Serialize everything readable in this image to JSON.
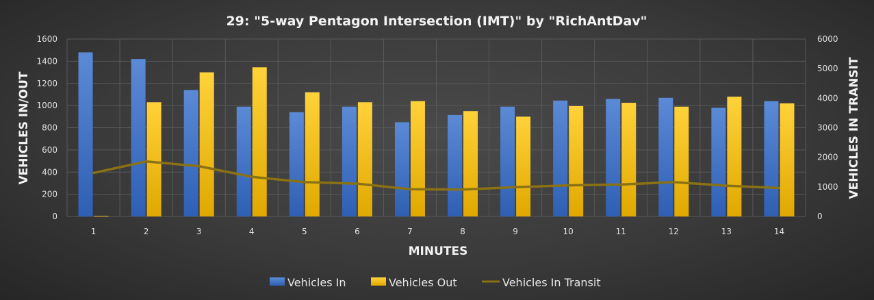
{
  "chart_data": {
    "type": "bar",
    "title": "29: \"5-way Pentagon Intersection (IMT)\" by \"RichAntDav\"",
    "xlabel": "MINUTES",
    "ylabel": "VEHICLES IN/OUT",
    "y2label": "VEHICLES IN TRANSIT",
    "ylim": [
      0,
      1600
    ],
    "y2lim": [
      0,
      6000
    ],
    "yticks": [
      0,
      200,
      400,
      600,
      800,
      1000,
      1200,
      1400,
      1600
    ],
    "y2ticks": [
      0,
      1000,
      2000,
      3000,
      4000,
      5000,
      6000
    ],
    "grid": true,
    "legend_position": "bottom",
    "categories": [
      "1",
      "2",
      "3",
      "4",
      "5",
      "6",
      "7",
      "8",
      "9",
      "10",
      "11",
      "12",
      "13",
      "14"
    ],
    "series": [
      {
        "name": "Vehicles In",
        "kind": "bar",
        "axis": "left",
        "color": "#4472c4",
        "values": [
          1480,
          1420,
          1140,
          990,
          940,
          990,
          850,
          915,
          990,
          1045,
          1060,
          1070,
          980,
          1040
        ]
      },
      {
        "name": "Vehicles Out",
        "kind": "bar",
        "axis": "left",
        "color": "#ffc000",
        "values": [
          5,
          1030,
          1300,
          1345,
          1120,
          1030,
          1040,
          950,
          900,
          995,
          1025,
          990,
          1080,
          1020
        ]
      },
      {
        "name": "Vehicles In Transit",
        "kind": "line",
        "axis": "right",
        "color": "#8a7214",
        "values": [
          1470,
          1860,
          1700,
          1340,
          1160,
          1110,
          920,
          910,
          990,
          1050,
          1080,
          1160,
          1040,
          960
        ]
      }
    ]
  }
}
